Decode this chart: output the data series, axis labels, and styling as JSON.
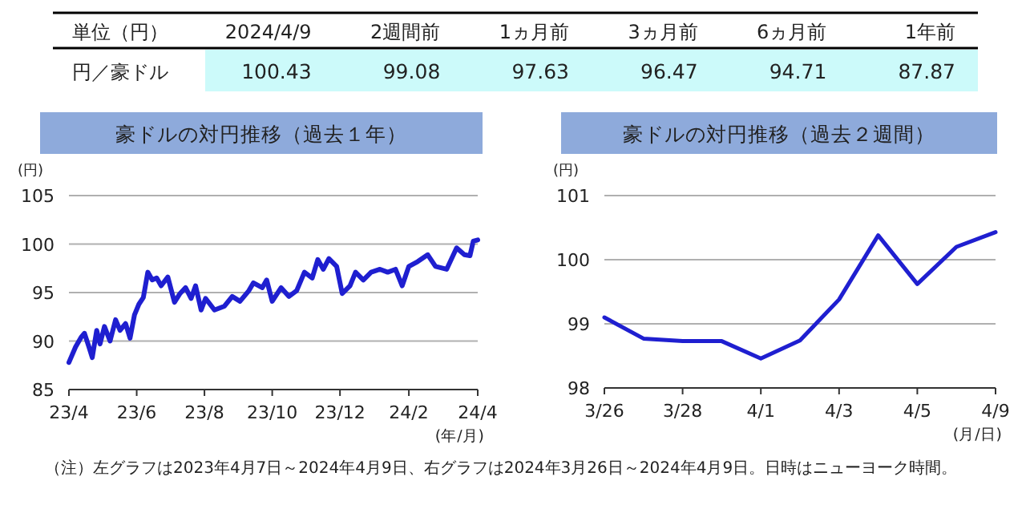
{
  "chart_data": [
    {
      "type": "other",
      "title": "単位（円）",
      "categories": [
        "2024/4/9",
        "2週間前",
        "1ヵ月前",
        "3ヵ月前",
        "6ヵ月前",
        "1年前"
      ],
      "y_categories": [
        "円／豪ドル"
      ],
      "values": [
        100.43,
        99.08,
        97.63,
        96.47,
        94.71,
        87.87
      ],
      "data_labels": true,
      "color": "#ccfafa"
    },
    {
      "type": "line",
      "title": "豪ドルの対円推移（過去１年）",
      "ylabel": "(円)",
      "xlabel": "(年/月)",
      "grid": "y",
      "marker": "none",
      "line_style": "solid",
      "x": [
        "2023-04-07",
        "2023-04-13",
        "2023-04-18",
        "2023-04-21",
        "2023-04-25",
        "2023-04-28",
        "2023-05-02",
        "2023-05-05",
        "2023-05-09",
        "2023-05-14",
        "2023-05-19",
        "2023-05-23",
        "2023-05-28",
        "2023-06-01",
        "2023-06-05",
        "2023-06-09",
        "2023-06-13",
        "2023-06-17",
        "2023-06-21",
        "2023-06-25",
        "2023-06-29",
        "2023-07-05",
        "2023-07-11",
        "2023-07-16",
        "2023-07-21",
        "2023-07-26",
        "2023-07-30",
        "2023-08-04",
        "2023-08-08",
        "2023-08-16",
        "2023-08-25",
        "2023-09-01",
        "2023-09-08",
        "2023-09-16",
        "2023-09-20",
        "2023-09-28",
        "2023-10-02",
        "2023-10-07",
        "2023-10-15",
        "2023-10-22",
        "2023-10-29",
        "2023-11-05",
        "2023-11-12",
        "2023-11-17",
        "2023-11-22",
        "2023-11-27",
        "2023-12-04",
        "2023-12-09",
        "2023-12-16",
        "2023-12-21",
        "2023-12-28",
        "2024-01-04",
        "2024-01-12",
        "2024-01-19",
        "2024-01-26",
        "2024-02-01",
        "2024-02-07",
        "2024-02-15",
        "2024-02-24",
        "2024-03-02",
        "2024-03-12",
        "2024-03-21",
        "2024-03-28",
        "2024-04-02",
        "2024-04-05",
        "2024-04-09"
      ],
      "series": [
        {
          "color": "#1f1fd0",
          "values": [
            87.8,
            89.4,
            90.4,
            90.8,
            89.4,
            88.3,
            91.1,
            89.7,
            91.5,
            90.0,
            92.2,
            91.1,
            91.8,
            90.3,
            92.7,
            93.8,
            94.5,
            97.1,
            96.3,
            96.5,
            95.7,
            96.6,
            94.0,
            94.9,
            95.5,
            94.4,
            95.7,
            93.2,
            94.4,
            93.2,
            93.6,
            94.6,
            94.1,
            95.2,
            96.0,
            95.5,
            96.3,
            94.1,
            95.5,
            94.6,
            95.2,
            97.1,
            96.5,
            98.4,
            97.4,
            98.5,
            97.7,
            94.9,
            95.7,
            97.1,
            96.3,
            97.1,
            97.4,
            97.1,
            97.4,
            95.7,
            97.7,
            98.2,
            98.9,
            97.7,
            97.4,
            99.6,
            98.9,
            98.8,
            100.3,
            100.43
          ]
        }
      ],
      "xlim": [
        "2023-04-07",
        "2024-04-09"
      ],
      "xticks": [
        {
          "value": "2023-04-07",
          "label": "23/4"
        },
        {
          "value": "2023-06-07",
          "label": "23/6"
        },
        {
          "value": "2023-08-07",
          "label": "23/8"
        },
        {
          "value": "2023-10-07",
          "label": "23/10"
        },
        {
          "value": "2023-12-07",
          "label": "23/12"
        },
        {
          "value": "2024-02-07",
          "label": "24/2"
        },
        {
          "value": "2024-04-09",
          "label": "24/4"
        }
      ],
      "ylim": [
        85,
        105
      ],
      "yticks": [
        85,
        90,
        95,
        100,
        105
      ],
      "annotations": [
        "（注）左グラフは2023年4月7日～2024年4月9日、右グラフは2024年3月26日～2024年4月9日。日時はニューヨーク時間。"
      ]
    },
    {
      "type": "line",
      "title": "豪ドルの対円推移（過去２週間）",
      "ylabel": "(円)",
      "xlabel": "(月/日)",
      "grid": "y",
      "marker": "none",
      "line_style": "solid",
      "categories": [
        "3/26",
        null,
        "3/28",
        null,
        "4/1",
        null,
        "4/3",
        null,
        "4/5",
        null,
        "4/9"
      ],
      "series": [
        {
          "color": "#1f1fd0",
          "values": [
            99.1,
            98.77,
            98.73,
            98.73,
            98.46,
            98.74,
            99.38,
            100.38,
            99.62,
            100.2,
            100.43
          ]
        }
      ],
      "ylim": [
        98,
        101
      ],
      "yticks": [
        98,
        99,
        100,
        101
      ]
    }
  ]
}
